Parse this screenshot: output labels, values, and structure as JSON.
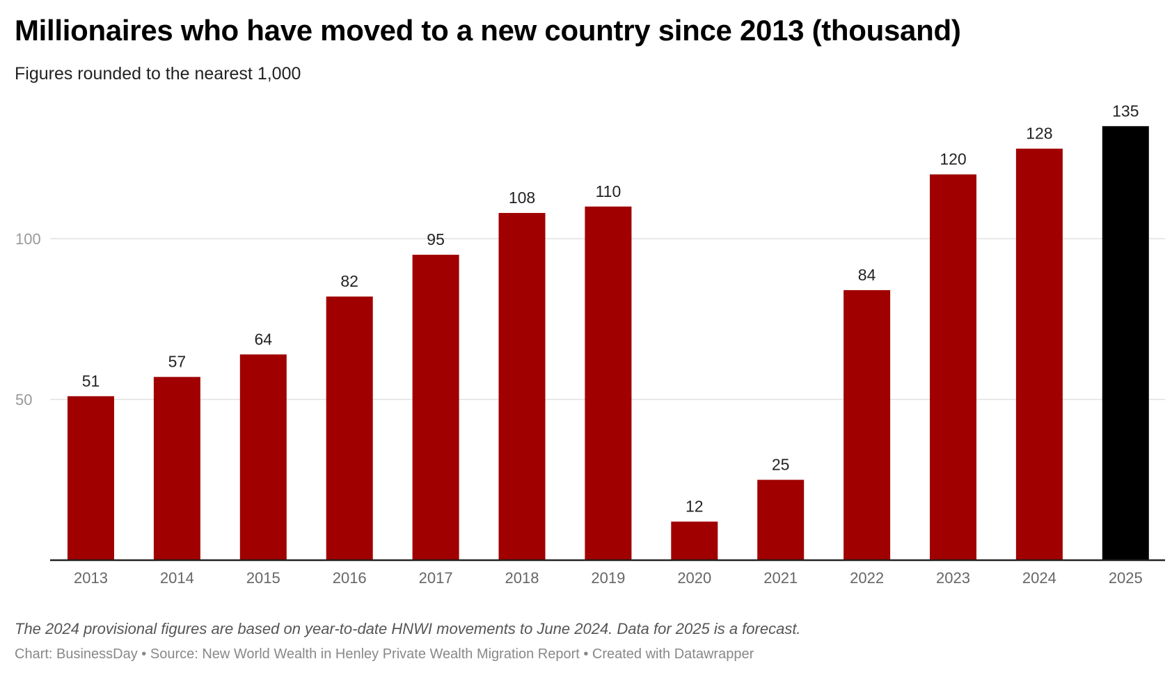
{
  "title": "Millionaires who have moved to a new country since 2013 (thousand)",
  "subtitle": "Figures rounded to the nearest 1,000",
  "note": "The 2024 provisional figures are based on year-to-date HNWI movements to June 2024. Data for 2025 is a forecast.",
  "credit": "Chart: BusinessDay • Source: New World Wealth in Henley Private Wealth Migration Report • Created with Datawrapper",
  "chart_data": {
    "type": "bar",
    "categories": [
      "2013",
      "2014",
      "2015",
      "2016",
      "2017",
      "2018",
      "2019",
      "2020",
      "2021",
      "2022",
      "2023",
      "2024",
      "2025"
    ],
    "values": [
      51,
      57,
      64,
      82,
      95,
      108,
      110,
      12,
      25,
      84,
      120,
      128,
      135
    ],
    "ylim": [
      0,
      135
    ],
    "yticks": [
      50,
      100
    ],
    "grid": true,
    "colors": {
      "bar": "#a00000",
      "highlight": "#000000"
    },
    "highlight_category": "2025",
    "data_labels": true
  }
}
